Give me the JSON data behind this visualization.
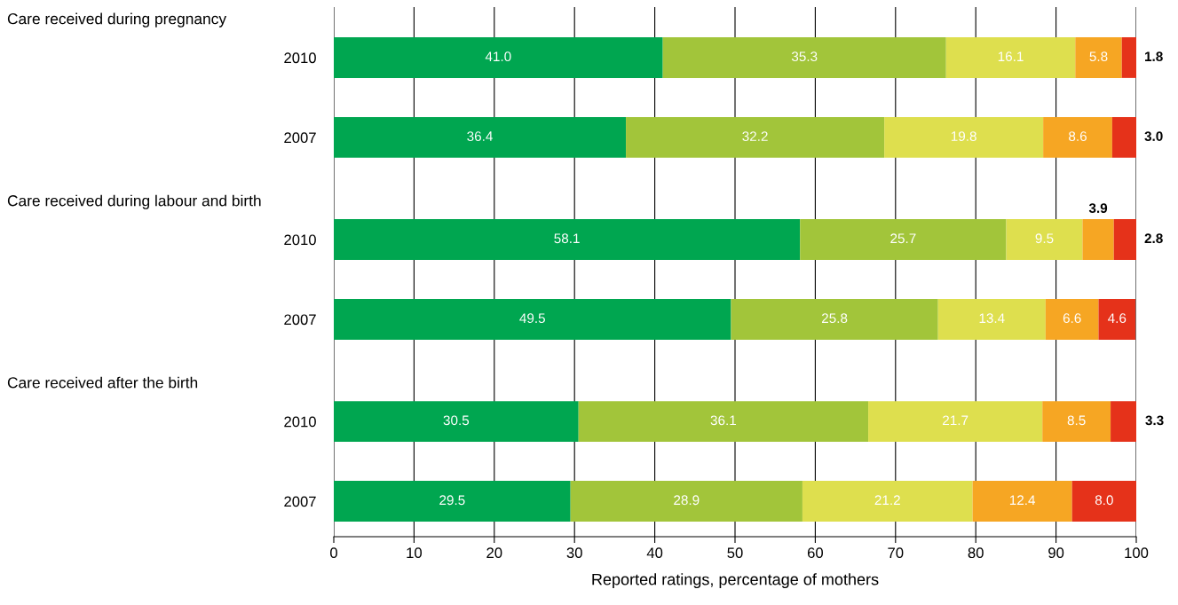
{
  "chart_data": {
    "type": "bar",
    "orientation": "horizontal",
    "stacked": true,
    "categories": [
      "2010",
      "2007",
      "2010",
      "2007",
      "2010",
      "2007"
    ],
    "annotations": [
      "Care received during pregnancy",
      "Care received during labour and birth",
      "Care received after the birth"
    ],
    "series": [
      {
        "color": "#00a650",
        "values": [
          41.0,
          36.4,
          58.1,
          49.5,
          30.5,
          29.5
        ],
        "value_labels": [
          "41.0",
          "36.4",
          "58.1",
          "49.5",
          "30.5",
          "29.5"
        ]
      },
      {
        "color": "#a2c53a",
        "values": [
          35.3,
          32.2,
          25.7,
          25.8,
          36.1,
          28.9
        ],
        "value_labels": [
          "35.3",
          "32.2",
          "25.7",
          "25.8",
          "36.1",
          "28.9"
        ]
      },
      {
        "color": "#dedf4e",
        "values": [
          16.1,
          19.8,
          9.5,
          13.4,
          21.7,
          21.2
        ],
        "value_labels": [
          "16.1",
          "19.8",
          "9.5",
          "13.4",
          "21.7",
          "21.2"
        ]
      },
      {
        "color": "#f6a623",
        "values": [
          5.8,
          8.6,
          3.9,
          6.6,
          8.5,
          12.4
        ],
        "value_labels": [
          "5.8",
          "8.6",
          "3.9",
          "6.6",
          "8.5",
          "12.4"
        ]
      },
      {
        "color": "#e5321a",
        "values": [
          1.8,
          3.0,
          2.8,
          4.6,
          3.3,
          8.0
        ],
        "value_labels": [
          "1.8",
          "3.0",
          "2.8",
          "4.6",
          "3.3",
          "8.0"
        ]
      }
    ],
    "xlabel": "Reported ratings, percentage of mothers",
    "xlim": [
      0,
      100
    ],
    "xticks": [
      0,
      10,
      20,
      30,
      40,
      50,
      60,
      70,
      80,
      90,
      100
    ],
    "grid": "x",
    "legend": false
  }
}
